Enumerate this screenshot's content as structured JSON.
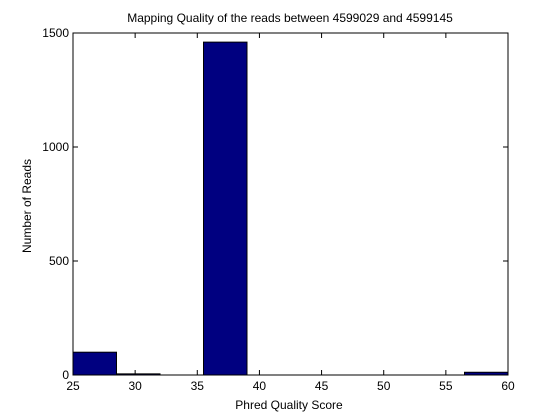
{
  "chart_data": {
    "type": "bar",
    "title": "Mapping Quality of the reads between 4599029 and 4599145",
    "xlabel": "Phred Quality Score",
    "ylabel": "Number of Reads",
    "xlim": [
      25,
      60
    ],
    "ylim": [
      0,
      1500
    ],
    "xticks": [
      25,
      30,
      35,
      40,
      45,
      50,
      55,
      60
    ],
    "yticks": [
      0,
      500,
      1000,
      1500
    ],
    "bars": [
      {
        "x0": 25.0,
        "x1": 28.5,
        "value": 100
      },
      {
        "x0": 28.5,
        "x1": 32.0,
        "value": 5
      },
      {
        "x0": 32.0,
        "x1": 35.5,
        "value": 0
      },
      {
        "x0": 35.5,
        "x1": 39.0,
        "value": 1460
      },
      {
        "x0": 39.0,
        "x1": 42.5,
        "value": 0
      },
      {
        "x0": 42.5,
        "x1": 46.0,
        "value": 0
      },
      {
        "x0": 46.0,
        "x1": 49.5,
        "value": 0
      },
      {
        "x0": 49.5,
        "x1": 53.0,
        "value": 0
      },
      {
        "x0": 53.0,
        "x1": 56.5,
        "value": 0
      },
      {
        "x0": 56.5,
        "x1": 60.0,
        "value": 12
      }
    ],
    "bar_color": "#000080",
    "grid": false,
    "legend": "none"
  }
}
